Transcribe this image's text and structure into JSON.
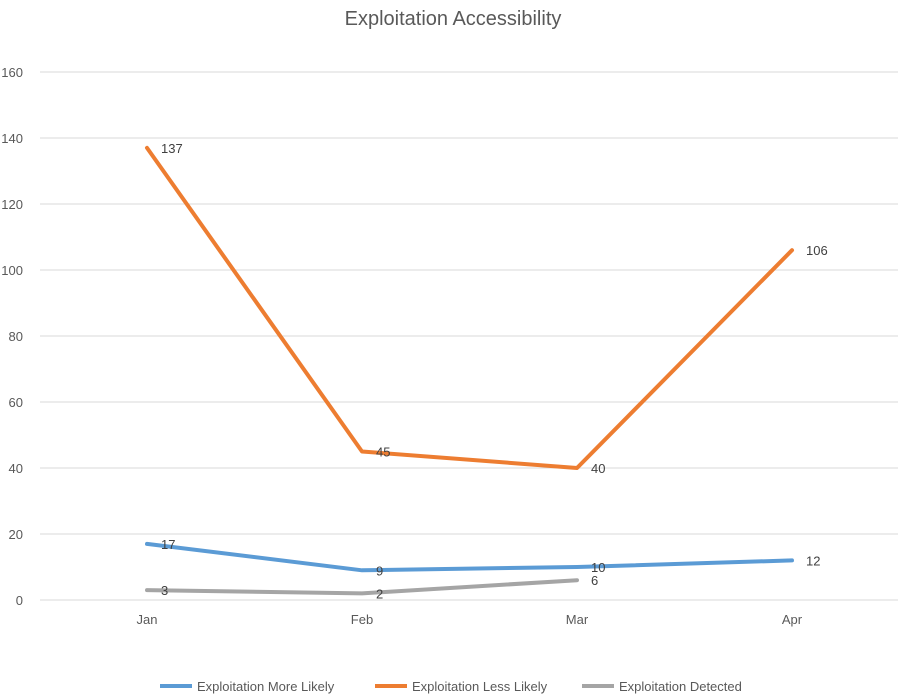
{
  "chart_data": {
    "type": "line",
    "title": "Exploitation Accessibility",
    "xlabel": "",
    "ylabel": "",
    "categories": [
      "Jan",
      "Feb",
      "Mar",
      "Apr"
    ],
    "ylim": [
      0,
      160
    ],
    "yticks": [
      0,
      20,
      40,
      60,
      80,
      100,
      120,
      140,
      160
    ],
    "grid": true,
    "legend_position": "bottom",
    "series": [
      {
        "name": "Exploitation More Likely",
        "color": "#5b9bd5",
        "values": [
          17,
          9,
          10,
          12
        ]
      },
      {
        "name": "Exploitation Less Likely",
        "color": "#ed7d31",
        "values": [
          137,
          45,
          40,
          106
        ]
      },
      {
        "name": "Exploitation Detected",
        "color": "#a5a5a5",
        "values": [
          3,
          2,
          6,
          null
        ]
      }
    ]
  }
}
